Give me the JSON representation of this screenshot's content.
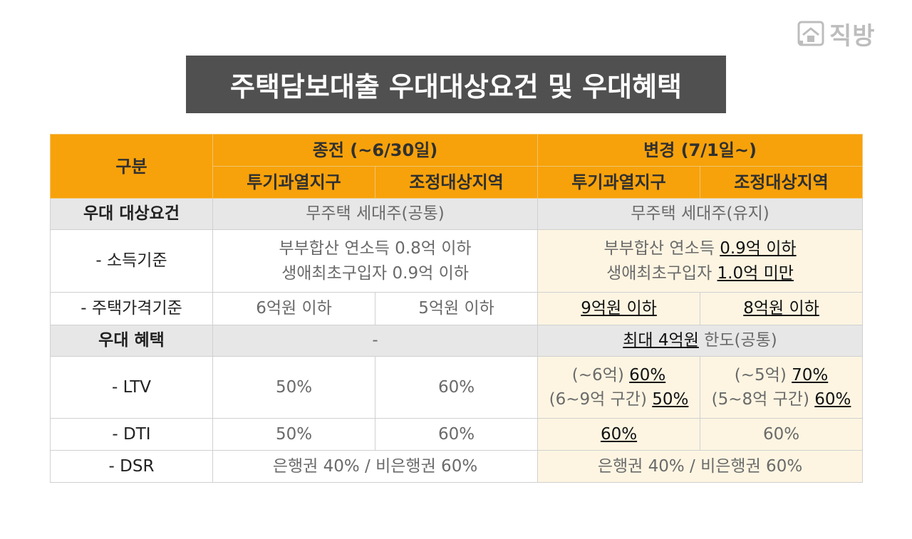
{
  "logo": {
    "text": "직방"
  },
  "title": "주택담보대출 우대대상요건 및 우대혜택",
  "header": {
    "category": "구분",
    "before": "종전 (~6/30일)",
    "after": "변경 (7/1일~)",
    "zone1": "투기과열지구",
    "zone2": "조정대상지역"
  },
  "rows": {
    "target": {
      "label": "우대 대상요건",
      "before": "무주택 세대주(공통)",
      "after": "무주택 세대주(유지)"
    },
    "income": {
      "label": "- 소득기준",
      "before_line1": "부부합산 연소득 0.8억 이하",
      "before_line2": "생애최초구입자 0.9억 이하",
      "after_line1_prefix": "부부합산 연소득 ",
      "after_line1_value": "0.9억 이하",
      "after_line2_prefix": "생애최초구입자 ",
      "after_line2_value": "1.0억 미만"
    },
    "price": {
      "label": "- 주택가격기준",
      "before_zone1": "6억원 이하",
      "before_zone2": "5억원 이하",
      "after_zone1": "9억원 이하",
      "after_zone2": "8억원 이하"
    },
    "benefit": {
      "label": "우대 혜택",
      "before": "-",
      "after_value": "최대 4억원",
      "after_suffix": " 한도(공통)"
    },
    "ltv": {
      "label": "- LTV",
      "before_zone1": "50%",
      "before_zone2": "60%",
      "after_zone1_line1_prefix": "(~6억) ",
      "after_zone1_line1_value": "60%",
      "after_zone1_line2_prefix": "(6~9억 구간) ",
      "after_zone1_line2_value": "50%",
      "after_zone2_line1_prefix": "(~5억) ",
      "after_zone2_line1_value": "70%",
      "after_zone2_line2_prefix": "(5~8억 구간) ",
      "after_zone2_line2_value": "60%"
    },
    "dti": {
      "label": "- DTI",
      "before_zone1": "50%",
      "before_zone2": "60%",
      "after_zone1": "60%",
      "after_zone2": "60%"
    },
    "dsr": {
      "label": "- DSR",
      "before": "은행권 40% / 비은행권 60%",
      "after": "은행권 40% / 비은행권 60%"
    }
  }
}
